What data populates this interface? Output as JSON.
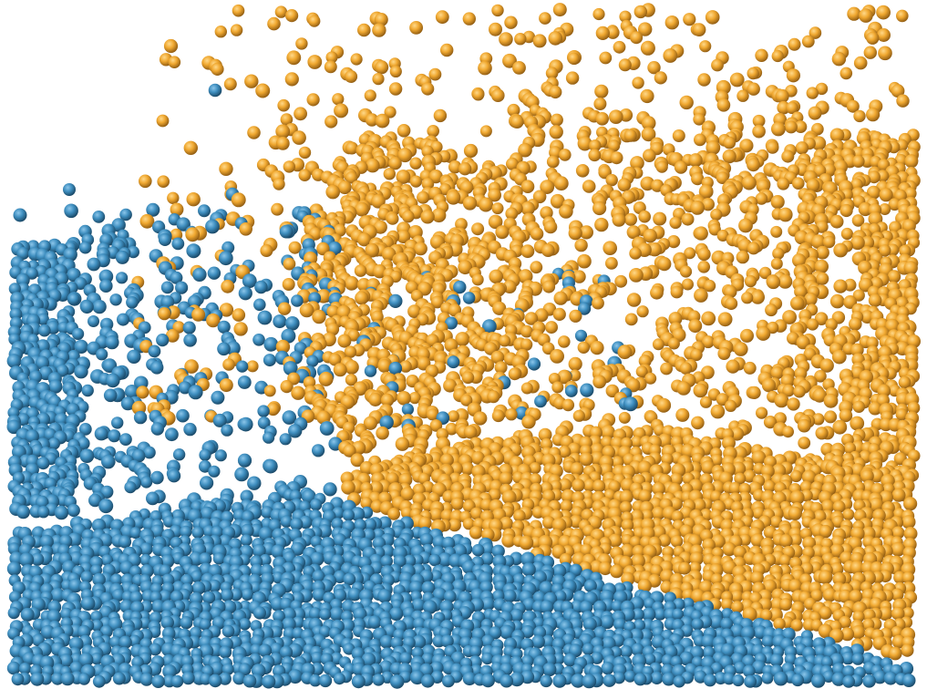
{
  "scene": {
    "kind": "particle-fluid-simulation-render",
    "background_color": "#ffffff",
    "fluids": [
      {
        "name": "blue-fluid",
        "base_color": "#3f8fc0",
        "highlight_color": "#8cc6ea",
        "shadow_color": "#16425f"
      },
      {
        "name": "orange-fluid",
        "base_color": "#f0a830",
        "highlight_color": "#ffd98a",
        "shadow_color": "#8a5710"
      }
    ]
  }
}
